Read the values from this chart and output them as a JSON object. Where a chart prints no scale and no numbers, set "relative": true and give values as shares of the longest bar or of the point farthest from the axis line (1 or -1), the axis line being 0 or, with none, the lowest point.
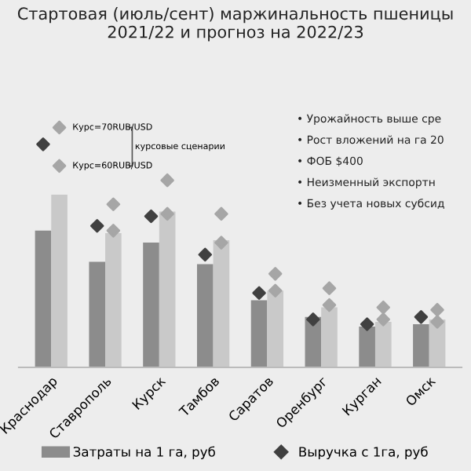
{
  "chart_data": {
    "type": "bar",
    "title": "Стартовая (июль/сент) маржинальность пшеницы\n2021/22 и прогноз на 2022/23",
    "relative": true,
    "categories": [
      "Краснодар",
      "Ставрополь",
      "Курск",
      "Тамбов",
      "Саратов",
      "Оренбург",
      "Курган",
      "Омск"
    ],
    "series": [
      {
        "name": "Затраты на 1 га, руб",
        "color": "#8c8c8c",
        "values": [
          0.57,
          0.44,
          0.52,
          0.43,
          0.28,
          0.21,
          0.17,
          0.18
        ]
      },
      {
        "color": "#c9c9c9",
        "values": [
          0.72,
          0.56,
          0.65,
          0.53,
          0.32,
          0.25,
          0.19,
          0.2
        ]
      },
      {
        "type": "scatter",
        "name": "Выручка с 1га, руб",
        "color": "#404040",
        "values": [
          0.93,
          0.59,
          0.63,
          0.47,
          0.31,
          0.2,
          0.18,
          0.21
        ]
      },
      {
        "type": "scatter",
        "color": "#a6a6a6",
        "values": [
          1.0,
          0.68,
          0.78,
          0.64,
          0.39,
          0.33,
          0.25,
          0.24
        ]
      },
      {
        "type": "scatter",
        "color": "#a6a6a6",
        "values": [
          0.84,
          0.57,
          0.64,
          0.52,
          0.32,
          0.26,
          0.2,
          0.19
        ]
      }
    ],
    "marker": "diamond",
    "legend": "bottom",
    "annotations": [
      {
        "text": "Курс=70RUB/USD",
        "x": "Краснодар",
        "y": 1.0
      },
      {
        "text": "Курс=60RUB/USD",
        "x": "Краснодар",
        "y": 0.84
      },
      "курсовые сценарии",
      "• Урожайность выше сре",
      "• Рост вложений на га 20",
      "• ФОБ $400",
      "• Неизменный экспортн",
      "• Без учета новых субсид"
    ]
  }
}
